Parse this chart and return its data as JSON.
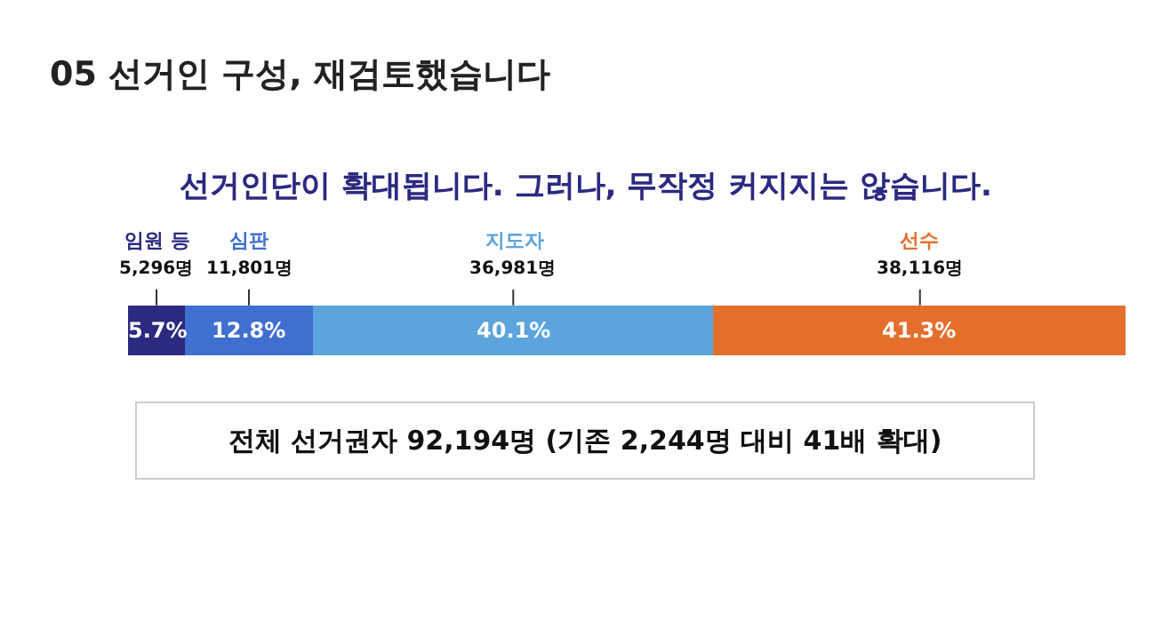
{
  "chart_data": {
    "type": "bar",
    "orientation": "horizontal",
    "stacked": true,
    "title": "05 선거인 구성, 재검토했습니다",
    "subtitle": "선거인단이 확대됩니다. 그러나, 무작정 커지지는 않습니다.",
    "categories": [
      null
    ],
    "legend": false,
    "series": [
      {
        "name": "임원 등",
        "color": "#2b2a80",
        "values": [
          5.7
        ],
        "value_labels": [
          "5.7%"
        ]
      },
      {
        "name": "심판",
        "color": "#3f6fcf",
        "values": [
          12.8
        ],
        "value_labels": [
          "12.8%"
        ]
      },
      {
        "name": "지도자",
        "color": "#5ba4dc",
        "values": [
          40.1
        ],
        "value_labels": [
          "40.1%"
        ]
      },
      {
        "name": "선수",
        "color": "#e46f2c",
        "values": [
          41.3
        ],
        "value_labels": [
          "41.3%"
        ]
      }
    ],
    "annotations": [
      "5,296명",
      "11,801명",
      "36,981명",
      "38,116명",
      "전체 선거권자 92,194명 (기존 2,244명 대비 41배 확대)"
    ]
  }
}
